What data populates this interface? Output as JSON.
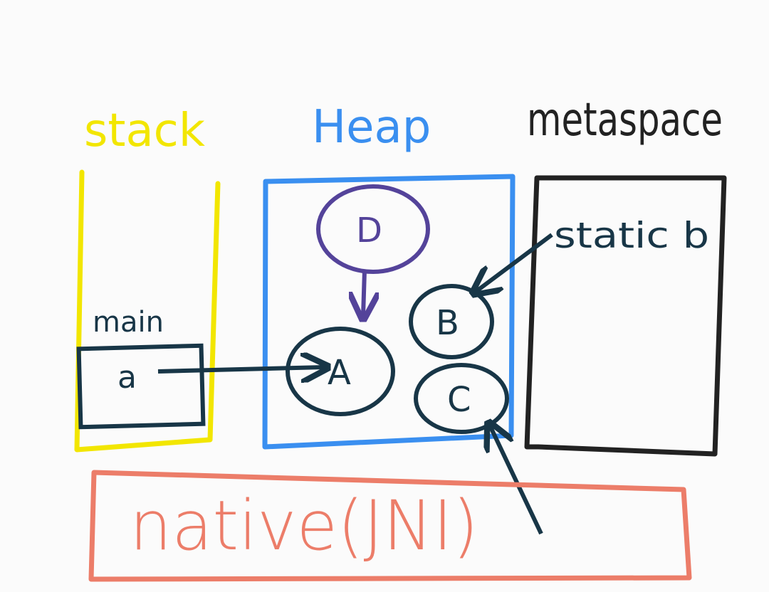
{
  "colors": {
    "background": "#fbfbfb",
    "stack": "#f2e600",
    "heap": "#3a8ff0",
    "metaspace": "#222222",
    "native": "#ec7d69",
    "ink": "#183647",
    "node_d": "#54439a"
  },
  "labels": {
    "stack": "stack",
    "heap": "Heap",
    "metaspace": "metaspace",
    "native": "native(JNI)"
  },
  "stack": {
    "frame_label": "main",
    "variable": "a"
  },
  "heap": {
    "nodes": [
      "D",
      "A",
      "B",
      "C"
    ]
  },
  "metaspace_content": {
    "static_field": "static b"
  }
}
